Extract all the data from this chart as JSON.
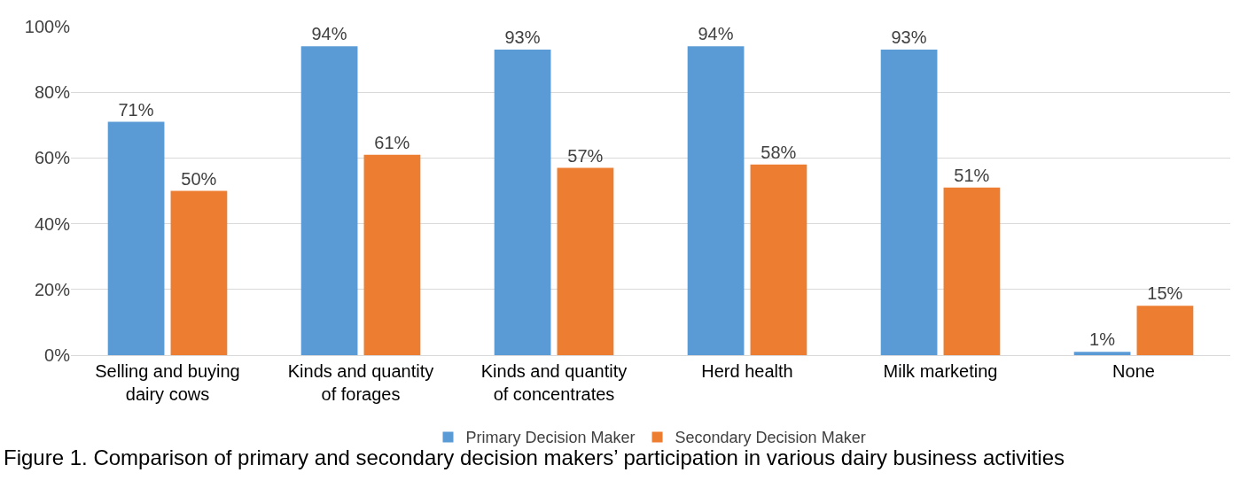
{
  "chart_data": {
    "type": "bar",
    "categories": [
      "Selling and buying dairy cows",
      "Kinds and quantity of forages",
      "Kinds and quantity of concentrates",
      "Herd health",
      "Milk marketing",
      "None"
    ],
    "series": [
      {
        "name": "Primary Decision Maker",
        "color": "#5b9bd5",
        "values": [
          71,
          94,
          93,
          94,
          93,
          1
        ],
        "value_labels": [
          "71%",
          "94%",
          "93%",
          "94%",
          "93%",
          "1%"
        ]
      },
      {
        "name": "Secondary Decision Maker",
        "color": "#ed7d31",
        "values": [
          50,
          61,
          57,
          58,
          51,
          15
        ],
        "value_labels": [
          "50%",
          "61%",
          "57%",
          "58%",
          "51%",
          "15%"
        ]
      }
    ],
    "ylim": [
      0,
      100
    ],
    "yticks": [
      {
        "value": 0,
        "label": "0%"
      },
      {
        "value": 20,
        "label": "20%"
      },
      {
        "value": 40,
        "label": "40%"
      },
      {
        "value": 60,
        "label": "60%"
      },
      {
        "value": 80,
        "label": "80%"
      },
      {
        "value": 100,
        "label": "100%"
      }
    ],
    "grid": "y",
    "legend": "bottom",
    "annotations": [
      "Figure 1. Comparison of primary and secondary decision makers’ participation in various dairy business activities"
    ]
  }
}
